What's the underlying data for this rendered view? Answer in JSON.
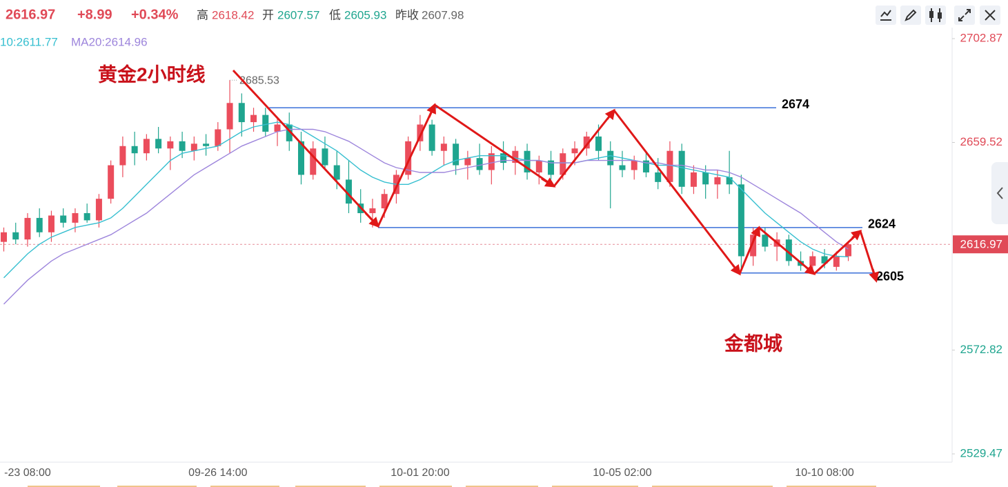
{
  "header": {
    "price": "2616.97",
    "change": "+8.99",
    "change_pct": "+0.34%",
    "high_label": "高",
    "high": "2618.42",
    "open_label": "开",
    "open": "2607.57",
    "low_label": "低",
    "low": "2605.93",
    "prev_label": "昨收",
    "prev": "2607.98"
  },
  "chart_data": {
    "type": "candlestick",
    "title": "黄金2小时线",
    "watermark": "金都城",
    "categories": [
      null,
      null,
      "-23 08:00",
      null,
      null,
      null,
      null,
      null,
      null,
      null,
      null,
      null,
      null,
      null,
      null,
      null,
      null,
      null,
      "09-26 14:00",
      null,
      null,
      null,
      null,
      null,
      null,
      null,
      null,
      null,
      null,
      null,
      null,
      null,
      null,
      null,
      null,
      "10-01 20:00",
      null,
      null,
      null,
      null,
      null,
      null,
      null,
      null,
      null,
      null,
      null,
      null,
      null,
      null,
      null,
      null,
      "10-05 02:00",
      null,
      null,
      null,
      null,
      null,
      null,
      null,
      null,
      null,
      null,
      null,
      null,
      null,
      null,
      null,
      null,
      "10-10 08:00",
      null,
      null
    ],
    "open": [
      2618,
      2622,
      2619,
      2628,
      2622,
      2629,
      2626,
      2630,
      2627,
      2636,
      2650,
      2658,
      2655,
      2661,
      2657,
      2660,
      2656,
      2659,
      2658,
      2665,
      2676,
      2668,
      2671,
      2664,
      2667,
      2660,
      2646,
      2657,
      2650,
      2644,
      2634,
      2630,
      2632,
      2638,
      2646,
      2660,
      2667,
      2656,
      2659,
      2650,
      2653,
      2648,
      2655,
      2651,
      2656,
      2647,
      2652,
      2646,
      2655,
      2657,
      2662,
      2656,
      2650,
      2648,
      2652,
      2647,
      2643,
      2656,
      2641,
      2647,
      2642,
      2645,
      2642,
      2612,
      2621,
      2616,
      2619,
      2610,
      2608,
      2612,
      2607.57,
      2612
    ],
    "high": [
      2624,
      2626,
      2630,
      2632,
      2631,
      2632,
      2632,
      2634,
      2638,
      2652,
      2662,
      2664,
      2663,
      2666,
      2662,
      2664,
      2662,
      2663,
      2668,
      2685.53,
      2680,
      2674,
      2674,
      2670,
      2672,
      2664,
      2660,
      2662,
      2656,
      2652,
      2640,
      2636,
      2640,
      2648,
      2662,
      2671,
      2669,
      2662,
      2661,
      2656,
      2659,
      2658,
      2660,
      2658,
      2659,
      2654,
      2656,
      2657,
      2660,
      2664,
      2667,
      2660,
      2656,
      2654,
      2656,
      2653,
      2660,
      2659,
      2650,
      2650,
      2648,
      2656,
      2646,
      2624,
      2624,
      2622,
      2621,
      2614,
      2614,
      2615,
      2614,
      2618.42
    ],
    "low": [
      2614,
      2617,
      2616,
      2620,
      2618,
      2624,
      2622,
      2626,
      2624,
      2634,
      2645,
      2650,
      2652,
      2655,
      2648,
      2653,
      2652,
      2654,
      2656,
      2655,
      2662,
      2664,
      2662,
      2658,
      2656,
      2642,
      2644,
      2648,
      2640,
      2630,
      2626,
      2624,
      2628,
      2634,
      2644,
      2656,
      2654,
      2650,
      2646,
      2644,
      2646,
      2642,
      2648,
      2646,
      2644,
      2642,
      2644,
      2644,
      2650,
      2654,
      2652,
      2632,
      2645,
      2644,
      2645,
      2640,
      2641,
      2638,
      2638,
      2636,
      2636,
      2638,
      2606,
      2608,
      2614,
      2610,
      2608,
      2605.93,
      2606,
      2607,
      2606,
      2610
    ],
    "close": [
      2622,
      2619,
      2628,
      2622,
      2629,
      2626,
      2630,
      2627,
      2636,
      2650,
      2658,
      2655,
      2661,
      2657,
      2660,
      2656,
      2659,
      2658,
      2665,
      2676,
      2668,
      2671,
      2664,
      2667,
      2660,
      2646,
      2657,
      2650,
      2644,
      2634,
      2630,
      2632,
      2638,
      2646,
      2660,
      2667,
      2656,
      2659,
      2650,
      2653,
      2648,
      2655,
      2651,
      2656,
      2647,
      2652,
      2646,
      2655,
      2657,
      2662,
      2656,
      2650,
      2648,
      2652,
      2647,
      2643,
      2656,
      2641,
      2647,
      2642,
      2645,
      2642,
      2612,
      2621,
      2616,
      2619,
      2610,
      2608,
      2612,
      2609,
      2612,
      2616.97
    ],
    "up_color": "#eb4d5c",
    "down_color": "#1fa58f",
    "series": [
      {
        "label": "10:2611.77",
        "color": "#36bfd0",
        "values": [
          2603,
          2608,
          2613,
          2617,
          2620,
          2622,
          2624,
          2625,
          2626,
          2628,
          2632,
          2637,
          2642,
          2647,
          2652,
          2655,
          2656,
          2657,
          2658,
          2661,
          2664,
          2666,
          2667,
          2668,
          2667,
          2665,
          2662,
          2659,
          2656,
          2652,
          2648,
          2645,
          2643,
          2642,
          2642,
          2644,
          2647,
          2650,
          2652,
          2653,
          2654,
          2654,
          2654,
          2653,
          2652,
          2652,
          2651,
          2651,
          2651,
          2652,
          2653,
          2654,
          2653,
          2652,
          2651,
          2650,
          2650,
          2649,
          2648,
          2647,
          2646,
          2645,
          2640,
          2635,
          2630,
          2626,
          2622,
          2618,
          2615,
          2613,
          2612,
          2611.77
        ]
      },
      {
        "label": "MA20:2614.96",
        "color": "#9d85dc",
        "values": [
          2592,
          2597,
          2602,
          2606,
          2610,
          2613,
          2615,
          2617,
          2619,
          2621,
          2624,
          2627,
          2630,
          2634,
          2638,
          2642,
          2646,
          2649,
          2652,
          2655,
          2658,
          2660,
          2662,
          2664,
          2665,
          2665,
          2665,
          2664,
          2662,
          2660,
          2657,
          2654,
          2651,
          2649,
          2648,
          2647,
          2647,
          2647,
          2648,
          2649,
          2650,
          2651,
          2652,
          2652,
          2652,
          2652,
          2651,
          2651,
          2651,
          2652,
          2652,
          2652,
          2652,
          2652,
          2651,
          2651,
          2650,
          2650,
          2649,
          2648,
          2648,
          2647,
          2645,
          2642,
          2639,
          2636,
          2633,
          2630,
          2626,
          2622,
          2618,
          2614.96
        ]
      }
    ],
    "last_price": 2616.97,
    "levels": [
      2674,
      2624,
      2605
    ],
    "level_color": "#3a6fd8",
    "ylim": [
      2526.01,
      2707.48
    ],
    "yticks": [
      2529.47,
      2572.82,
      2659.52,
      2702.87
    ]
  }
}
